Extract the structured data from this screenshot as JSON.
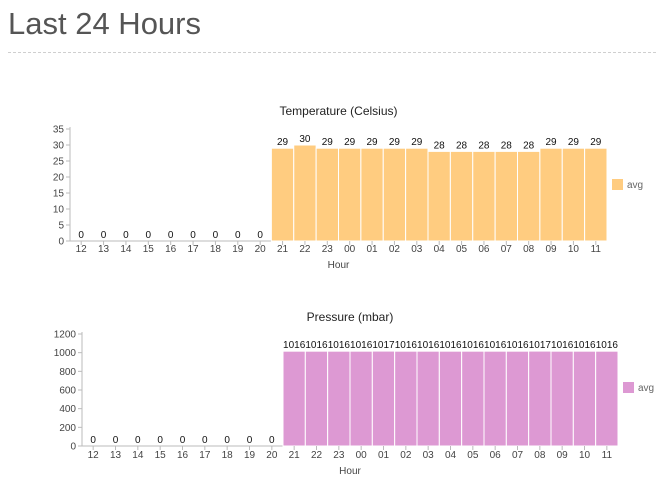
{
  "page": {
    "title": "Last 24 Hours"
  },
  "chart_data": [
    {
      "type": "bar",
      "title": "Temperature (Celsius)",
      "xlabel": "Hour",
      "ylabel": "",
      "ylim": [
        0,
        35
      ],
      "yticks": [
        0,
        5,
        10,
        15,
        20,
        25,
        30,
        35
      ],
      "categories": [
        "12",
        "13",
        "14",
        "15",
        "16",
        "17",
        "18",
        "19",
        "20",
        "21",
        "22",
        "23",
        "00",
        "01",
        "02",
        "03",
        "04",
        "05",
        "06",
        "07",
        "08",
        "09",
        "10",
        "11"
      ],
      "series": [
        {
          "name": "avg",
          "color": "#ffcc80",
          "values": [
            0,
            0,
            0,
            0,
            0,
            0,
            0,
            0,
            0,
            29,
            30,
            29,
            29,
            29,
            29,
            29,
            28,
            28,
            28,
            28,
            28,
            29,
            29,
            29
          ]
        }
      ],
      "grid": false,
      "legend_position": "right"
    },
    {
      "type": "bar",
      "title": "Pressure (mbar)",
      "xlabel": "Hour",
      "ylabel": "",
      "ylim": [
        0,
        1200
      ],
      "yticks": [
        0,
        200,
        400,
        600,
        800,
        1000,
        1200
      ],
      "categories": [
        "12",
        "13",
        "14",
        "15",
        "16",
        "17",
        "18",
        "19",
        "20",
        "21",
        "22",
        "23",
        "00",
        "01",
        "02",
        "03",
        "04",
        "05",
        "06",
        "07",
        "08",
        "09",
        "10",
        "11"
      ],
      "series": [
        {
          "name": "avg",
          "color": "#dd99d3",
          "values": [
            0,
            0,
            0,
            0,
            0,
            0,
            0,
            0,
            0,
            1016,
            1016,
            1016,
            1016,
            1017,
            1016,
            1016,
            1016,
            1016,
            1016,
            1016,
            1017,
            1016,
            1016,
            1016
          ]
        }
      ],
      "grid": false,
      "legend_position": "right"
    }
  ]
}
